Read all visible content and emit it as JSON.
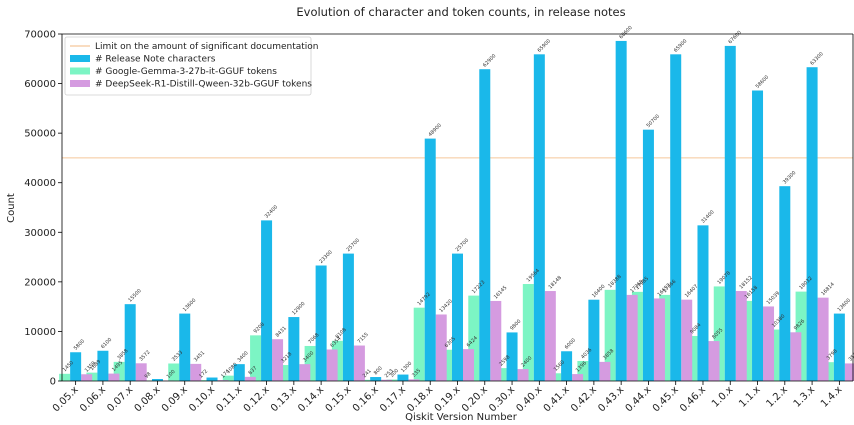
{
  "chart_data": {
    "type": "bar",
    "title": "Evolution of character and token counts, in release notes",
    "xlabel": "Qiskit Version Number",
    "ylabel": "Count",
    "ylim": [
      0,
      70000
    ],
    "yticks": [
      "0",
      "10000",
      "20000",
      "30000",
      "40000",
      "50000",
      "60000",
      "70000"
    ],
    "grid": false,
    "legend_position": "top-left",
    "categories": [
      "0.05.x",
      "0.06.x",
      "0.07.x",
      "0.08.x",
      "0.09.x",
      "0.10.x",
      "0.11.x",
      "0.12.x",
      "0.13.x",
      "0.14.x",
      "0.15.x",
      "0.16.x",
      "0.17.x",
      "0.18.x",
      "0.19.x",
      "0.20.x",
      "0.30.x",
      "0.40.x",
      "0.41.x",
      "0.42.x",
      "0.43.x",
      "0.44.x",
      "0.45.x",
      "0.46.x",
      "1.0.x",
      "1.1.x",
      "1.2.x",
      "1.3.x",
      "1.4.x"
    ],
    "reference_line": {
      "name": "Limit on the amount of significant documentation",
      "value": 45000,
      "color": "#f5c89a"
    },
    "series": [
      {
        "name": "# Release Note characters",
        "color": "#1ab8ea",
        "values": [
          5800,
          6100,
          15500,
          400,
          13600,
          700,
          3400,
          32400,
          12900,
          23300,
          25700,
          800,
          1300,
          48900,
          25700,
          62900,
          9800,
          65900,
          6000,
          16400,
          68600,
          50700,
          65900,
          31400,
          67600,
          58600,
          39300,
          63300,
          13600
        ],
        "labels": [
          "5800",
          "6100",
          "15500",
          "",
          "13600",
          "",
          "3400",
          "32400",
          "12900",
          "23300",
          "25700",
          "800",
          "1300",
          "48900",
          "25700",
          "62900",
          "9800",
          "65900",
          "6000",
          "16400",
          "68600",
          "50700",
          "65900",
          "31400",
          "67600",
          "58600",
          "39300",
          "63300",
          "13600"
        ]
      },
      {
        "name": "# Google-Gemma-3-27b-it-GGUF tokens",
        "color": "#7cf5c4",
        "values": [
          1450,
          1689,
          3858,
          98,
          3533,
          172,
          1080,
          9208,
          3218,
          7068,
          8108,
          241,
          300,
          14792,
          6305,
          17223,
          2598,
          19564,
          1560,
          4036,
          18388,
          17985,
          17366,
          9084,
          19078,
          16158,
          10380,
          18032,
          3798
        ],
        "labels": [
          "1450",
          "1689",
          "3858",
          "98",
          "3533",
          "172",
          "1080",
          "9208",
          "3218",
          "7068",
          "8108",
          "241",
          "300",
          "14792",
          "6305",
          "17223",
          "2598",
          "19564",
          "1560",
          "4036",
          "18388",
          "17985",
          "17366",
          "9084",
          "19078",
          "16158",
          "10380",
          "18032",
          "3798"
        ]
      },
      {
        "name": "# DeepSeek-R1-Distill-Qween-32b-GGUF tokens",
        "color": "#d59be0",
        "values": [
          1359,
          1495,
          3572,
          100,
          3451,
          174,
          837,
          8431,
          3400,
          6354,
          7155,
          253,
          335,
          13420,
          6424,
          16145,
          2400,
          18148,
          1396,
          3858,
          17369,
          16652,
          16407,
          8055,
          18152,
          15039,
          9826,
          16814,
          3544
        ],
        "labels": [
          "1359",
          "1495",
          "3572",
          "100",
          "3451",
          "174",
          "837",
          "8431",
          "3400",
          "6354",
          "7155",
          "253",
          "335",
          "13420",
          "6424",
          "16145",
          "2400",
          "18148",
          "1396",
          "3858",
          "17369",
          "16652",
          "16407",
          "8055",
          "18152",
          "15039",
          "9826",
          "16814",
          "3544"
        ]
      }
    ]
  }
}
